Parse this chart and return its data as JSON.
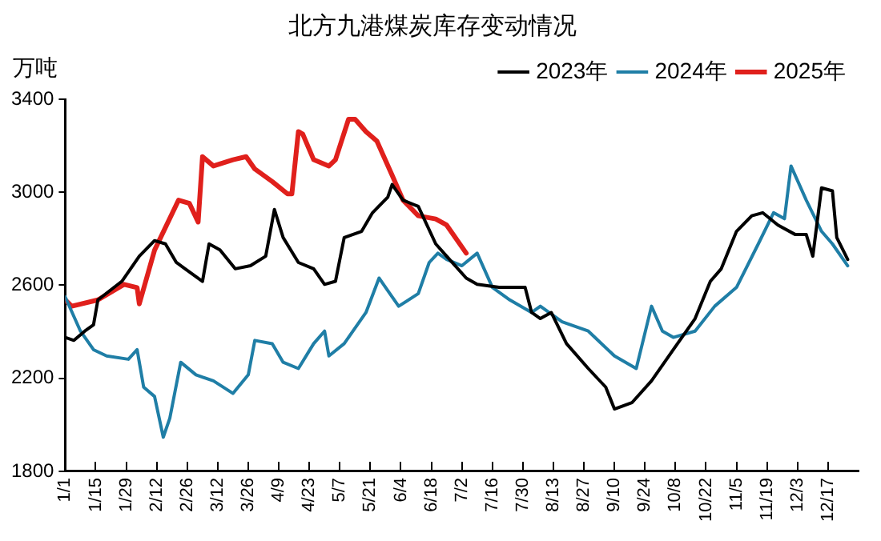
{
  "chart_data": {
    "type": "line",
    "title": "北方九港煤炭库存变动情况",
    "ylabel": "万吨",
    "legend": "top right",
    "grid": false,
    "marker": "none",
    "line_style": "solid",
    "xlim": [
      "--01-01",
      "--12-31"
    ],
    "ylim": [
      1800,
      3400
    ],
    "yticks": [
      1800,
      2200,
      2600,
      3000,
      3400
    ],
    "xticks": [
      {
        "value": "--01-01",
        "label": "1/1"
      },
      {
        "value": "--01-15",
        "label": "1/15"
      },
      {
        "value": "--01-29",
        "label": "1/29"
      },
      {
        "value": "--02-12",
        "label": "2/12"
      },
      {
        "value": "--02-26",
        "label": "2/26"
      },
      {
        "value": "--03-12",
        "label": "3/12"
      },
      {
        "value": "--03-26",
        "label": "3/26"
      },
      {
        "value": "--04-09",
        "label": "4/9"
      },
      {
        "value": "--04-23",
        "label": "4/23"
      },
      {
        "value": "--05-07",
        "label": "5/7"
      },
      {
        "value": "--05-21",
        "label": "5/21"
      },
      {
        "value": "--06-04",
        "label": "6/4"
      },
      {
        "value": "--06-18",
        "label": "6/18"
      },
      {
        "value": "--07-02",
        "label": "7/2"
      },
      {
        "value": "--07-16",
        "label": "7/16"
      },
      {
        "value": "--07-30",
        "label": "7/30"
      },
      {
        "value": "--08-13",
        "label": "8/13"
      },
      {
        "value": "--08-27",
        "label": "8/27"
      },
      {
        "value": "--09-10",
        "label": "9/10"
      },
      {
        "value": "--09-24",
        "label": "9/24"
      },
      {
        "value": "--10-08",
        "label": "10/8"
      },
      {
        "value": "--10-22",
        "label": "10/22"
      },
      {
        "value": "--11-05",
        "label": "11/5"
      },
      {
        "value": "--11-19",
        "label": "11/19"
      },
      {
        "value": "--12-03",
        "label": "12/3"
      },
      {
        "value": "--12-17",
        "label": "12/17"
      }
    ],
    "series": [
      {
        "name": "2023年",
        "color": "#000000",
        "x": [
          "--01-01",
          "--01-05",
          "--01-10",
          "--01-14",
          "--01-16",
          "--01-27",
          "--02-04",
          "--02-11",
          "--02-16",
          "--02-21",
          "--02-25",
          "--03-05",
          "--03-08",
          "--03-13",
          "--03-20",
          "--03-27",
          "--04-03",
          "--04-07",
          "--04-11",
          "--04-18",
          "--04-25",
          "--04-30",
          "--05-05",
          "--05-09",
          "--05-17",
          "--05-22",
          "--05-29",
          "--05-31",
          "--06-05",
          "--06-12",
          "--06-20",
          "--06-25",
          "--07-04",
          "--07-09",
          "--07-19",
          "--07-31",
          "--08-03",
          "--08-07",
          "--08-12",
          "--08-19",
          "--08-29",
          "--09-06",
          "--09-10",
          "--09-18",
          "--09-27",
          "--10-07",
          "--10-17",
          "--10-24",
          "--10-29",
          "--11-05",
          "--11-12",
          "--11-17",
          "--11-24",
          "--12-02",
          "--12-07",
          "--12-10",
          "--12-14",
          "--12-19",
          "--12-21",
          "--12-26"
        ],
        "values": [
          2376,
          2363,
          2403,
          2430,
          2537,
          2617,
          2725,
          2792,
          2778,
          2698,
          2671,
          2617,
          2778,
          2752,
          2671,
          2684,
          2725,
          2926,
          2805,
          2698,
          2671,
          2604,
          2617,
          2805,
          2832,
          2912,
          2979,
          3033,
          2966,
          2939,
          2778,
          2725,
          2631,
          2604,
          2591,
          2591,
          2483,
          2457,
          2483,
          2349,
          2242,
          2162,
          2068,
          2095,
          2189,
          2323,
          2457,
          2617,
          2671,
          2832,
          2899,
          2912,
          2859,
          2818,
          2818,
          2725,
          3019,
          3006,
          2805,
          2711
        ]
      },
      {
        "name": "2024年",
        "color": "#1f7ea6",
        "x": [
          "--01-01",
          "--01-08",
          "--01-14",
          "--01-20",
          "--01-30",
          "--02-03",
          "--02-06",
          "--02-11",
          "--02-15",
          "--02-18",
          "--02-23",
          "--03-02",
          "--03-10",
          "--03-19",
          "--03-26",
          "--03-29",
          "--04-06",
          "--04-11",
          "--04-18",
          "--04-25",
          "--04-30",
          "--05-02",
          "--05-09",
          "--05-19",
          "--05-25",
          "--05-29",
          "--06-03",
          "--06-12",
          "--06-17",
          "--06-21",
          "--06-25",
          "--07-02",
          "--07-09",
          "--07-16",
          "--07-24",
          "--08-03",
          "--08-07",
          "--08-17",
          "--08-29",
          "--09-10",
          "--09-20",
          "--09-27",
          "--10-02",
          "--10-07",
          "--10-17",
          "--10-26",
          "--11-05",
          "--11-15",
          "--11-22",
          "--11-27",
          "--11-30",
          "--12-07",
          "--12-14",
          "--12-19",
          "--12-26"
        ],
        "values": [
          2550,
          2403,
          2323,
          2296,
          2282,
          2323,
          2162,
          2122,
          1947,
          2028,
          2269,
          2215,
          2189,
          2135,
          2215,
          2363,
          2349,
          2269,
          2242,
          2349,
          2403,
          2296,
          2349,
          2483,
          2631,
          2577,
          2510,
          2564,
          2698,
          2738,
          2711,
          2684,
          2738,
          2591,
          2537,
          2483,
          2510,
          2443,
          2403,
          2296,
          2242,
          2510,
          2403,
          2376,
          2403,
          2510,
          2591,
          2778,
          2912,
          2886,
          3113,
          2966,
          2832,
          2778,
          2684
        ]
      },
      {
        "name": "2025年",
        "color": "#e0201c",
        "x": [
          "--01-01",
          "--01-04",
          "--01-16",
          "--01-28",
          "--02-03",
          "--02-04",
          "--02-11",
          "--02-22",
          "--02-27",
          "--03-03",
          "--03-05",
          "--03-10",
          "--03-19",
          "--03-25",
          "--03-29",
          "--04-06",
          "--04-13",
          "--04-15",
          "--04-18",
          "--04-20",
          "--04-25",
          "--05-02",
          "--05-05",
          "--05-11",
          "--05-14",
          "--05-19",
          "--05-24",
          "--05-31",
          "--06-05",
          "--06-12",
          "--06-20",
          "--06-25",
          "--07-04"
        ],
        "values": [
          2537,
          2510,
          2537,
          2604,
          2590,
          2520,
          2751,
          2966,
          2952,
          2872,
          3153,
          3113,
          3140,
          3153,
          3100,
          3046,
          2993,
          2993,
          3261,
          3250,
          3140,
          3113,
          3140,
          3314,
          3314,
          3261,
          3220,
          3073,
          2966,
          2899,
          2885,
          2859,
          2738
        ]
      }
    ]
  }
}
